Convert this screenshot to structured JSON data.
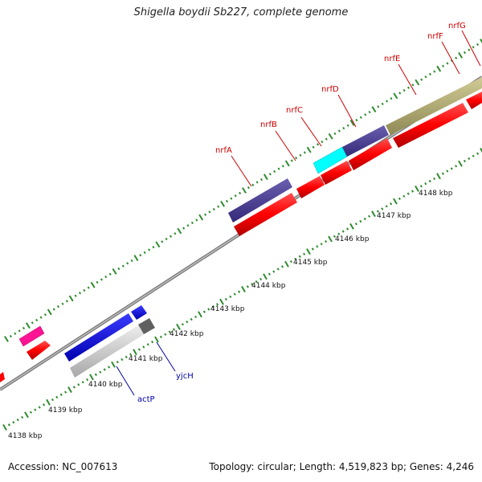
{
  "title": "Shigella boydii Sb227, complete genome",
  "footer": {
    "accession": "Accession: NC_007613",
    "topology": "Topology: circular; Length: 4,519,823 bp; Genes: 4,246"
  },
  "colors": {
    "backbone": "#8a8a8a",
    "tick": "#2e8b2e",
    "label_red": "#cc0000",
    "label_blue": "#0000aa"
  },
  "kbp_labels": [
    "4138 kbp",
    "4139 kbp",
    "4140 kbp",
    "4141 kbp",
    "4142 kbp",
    "4143 kbp",
    "4144 kbp",
    "4145 kbp",
    "4146 kbp",
    "4147 kbp",
    "4148 kbp"
  ],
  "gene_labels": [
    {
      "name": "nrfA",
      "color": "#cc0000"
    },
    {
      "name": "nrfB",
      "color": "#cc0000"
    },
    {
      "name": "nrfC",
      "color": "#cc0000"
    },
    {
      "name": "nrfD",
      "color": "#cc0000"
    },
    {
      "name": "nrfE",
      "color": "#cc0000"
    },
    {
      "name": "nrfF",
      "color": "#cc0000"
    },
    {
      "name": "nrfG",
      "color": "#cc0000"
    },
    {
      "name": "actP",
      "color": "#0000aa"
    },
    {
      "name": "yjcH",
      "color": "#0000aa"
    }
  ],
  "features": [
    {
      "type": "cds",
      "color": "#ff1493"
    },
    {
      "type": "cds",
      "color": "#ff0000"
    },
    {
      "type": "cds",
      "color": "#0000ff"
    },
    {
      "type": "cds",
      "color": "#c8c8c8"
    },
    {
      "type": "cds",
      "color": "#4b3f96"
    },
    {
      "type": "cds",
      "color": "#00ffff"
    },
    {
      "type": "cds",
      "color": "#b5b07a"
    }
  ]
}
